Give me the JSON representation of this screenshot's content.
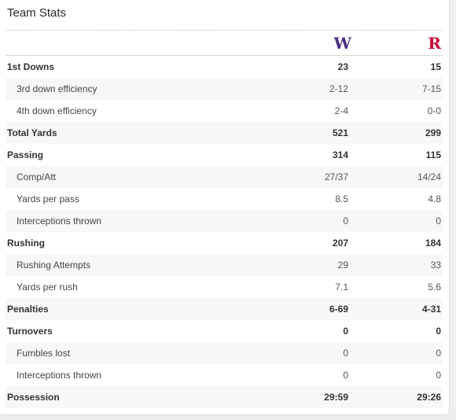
{
  "title": "Team Stats",
  "teams": {
    "home": {
      "logo_text": "W",
      "color": "#4b2e83"
    },
    "away": {
      "logo_text": "R",
      "color": "#cc0033"
    }
  },
  "rows": [
    {
      "label": "1st Downs",
      "home": "23",
      "away": "15",
      "main": true
    },
    {
      "label": "3rd down efficiency",
      "home": "2-12",
      "away": "7-15",
      "main": false
    },
    {
      "label": "4th down efficiency",
      "home": "2-4",
      "away": "0-0",
      "main": false
    },
    {
      "label": "Total Yards",
      "home": "521",
      "away": "299",
      "main": true
    },
    {
      "label": "Passing",
      "home": "314",
      "away": "115",
      "main": true
    },
    {
      "label": "Comp/Att",
      "home": "27/37",
      "away": "14/24",
      "main": false
    },
    {
      "label": "Yards per pass",
      "home": "8.5",
      "away": "4.8",
      "main": false
    },
    {
      "label": "Interceptions thrown",
      "home": "0",
      "away": "0",
      "main": false
    },
    {
      "label": "Rushing",
      "home": "207",
      "away": "184",
      "main": true
    },
    {
      "label": "Rushing Attempts",
      "home": "29",
      "away": "33",
      "main": false
    },
    {
      "label": "Yards per rush",
      "home": "7.1",
      "away": "5.6",
      "main": false
    },
    {
      "label": "Penalties",
      "home": "6-69",
      "away": "4-31",
      "main": true
    },
    {
      "label": "Turnovers",
      "home": "0",
      "away": "0",
      "main": true
    },
    {
      "label": "Fumbles lost",
      "home": "0",
      "away": "0",
      "main": false
    },
    {
      "label": "Interceptions thrown",
      "home": "0",
      "away": "0",
      "main": false
    },
    {
      "label": "Possession",
      "home": "29:59",
      "away": "29:26",
      "main": true
    }
  ]
}
